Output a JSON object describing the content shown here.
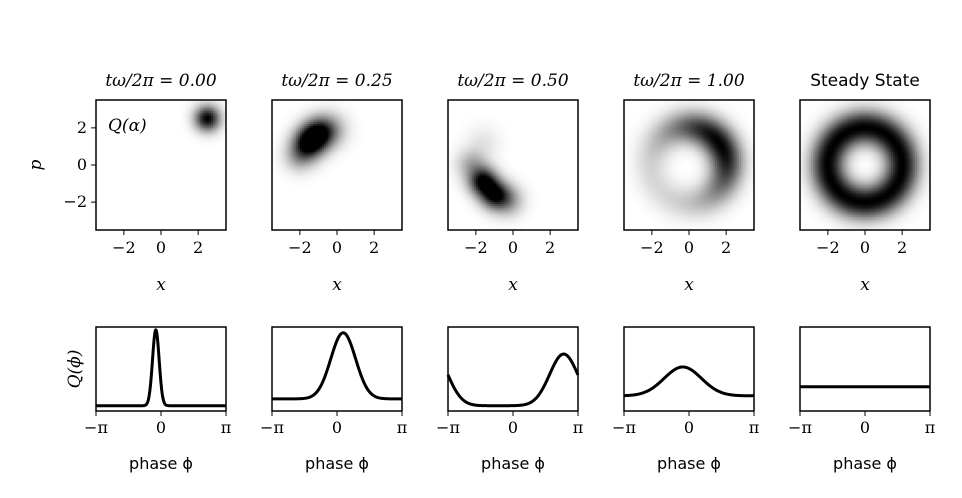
{
  "chart_data": [
    {
      "type": "heatmap",
      "title": "tω/2π = 0.00",
      "xlabel": "x",
      "ylabel": "p",
      "annotation": "Q(α)",
      "xlim": [
        -3.5,
        3.5
      ],
      "ylim": [
        -3.5,
        3.5
      ],
      "xticks": [
        "−2",
        "0",
        "2"
      ],
      "yticks": [
        "2",
        "0",
        "−2"
      ],
      "blobs": [
        {
          "cx": 2.5,
          "cy": 2.5,
          "sigma": 0.45,
          "amp": 1.0
        }
      ]
    },
    {
      "type": "heatmap",
      "title": "tω/2π = 0.25",
      "xlabel": "x",
      "xlim": [
        -3.5,
        3.5
      ],
      "ylim": [
        -3.5,
        3.5
      ],
      "xticks": [
        "−2",
        "0",
        "2"
      ],
      "blobs": [
        {
          "cx": -1.5,
          "cy": 1.2,
          "sigma": 0.55,
          "amp": 1.0
        },
        {
          "cx": -1.0,
          "cy": 1.7,
          "sigma": 0.55,
          "amp": 0.8
        },
        {
          "cx": -0.4,
          "cy": 1.9,
          "sigma": 0.6,
          "amp": 0.35
        },
        {
          "cx": -2.0,
          "cy": 0.5,
          "sigma": 0.55,
          "amp": 0.35
        }
      ]
    },
    {
      "type": "heatmap",
      "title": "tω/2π = 0.50",
      "xlabel": "x",
      "xlim": [
        -3.5,
        3.5
      ],
      "ylim": [
        -3.5,
        3.5
      ],
      "xticks": [
        "−2",
        "0",
        "2"
      ],
      "blobs": [
        {
          "cx": -1.6,
          "cy": -0.9,
          "sigma": 0.5,
          "amp": 1.0
        },
        {
          "cx": -1.0,
          "cy": -1.6,
          "sigma": 0.5,
          "amp": 0.9
        },
        {
          "cx": -0.3,
          "cy": -1.9,
          "sigma": 0.55,
          "amp": 0.4
        },
        {
          "cx": -2.2,
          "cy": 0.0,
          "sigma": 0.55,
          "amp": 0.3
        },
        {
          "cx": -1.6,
          "cy": 1.2,
          "sigma": 0.6,
          "amp": 0.08
        }
      ]
    },
    {
      "type": "heatmap",
      "title": "tω/2π = 1.00",
      "xlabel": "x",
      "xlim": [
        -3.5,
        3.5
      ],
      "ylim": [
        -3.5,
        3.5
      ],
      "xticks": [
        "−2",
        "0",
        "2"
      ],
      "ring": {
        "r": 2.0,
        "width": 0.6,
        "phi": 0.6,
        "spread": 1.0,
        "amp": 1.0,
        "bg": 0.12
      }
    },
    {
      "type": "heatmap",
      "title": "Steady State",
      "xlabel": "x",
      "xlim": [
        -3.5,
        3.5
      ],
      "ylim": [
        -3.5,
        3.5
      ],
      "xticks": [
        "−2",
        "0",
        "2"
      ],
      "ring": {
        "r": 2.0,
        "width": 0.62,
        "uniform": true,
        "amp": 1.0
      }
    },
    {
      "type": "line",
      "xlabel": "phase ϕ",
      "ylabel": "Q(ϕ)",
      "xlim": [
        -3.1416,
        3.1416
      ],
      "xticks": [
        "−π",
        "0",
        "π"
      ],
      "curve": {
        "base": 0.03,
        "amp": 1.0,
        "center": -0.25,
        "sigma": 0.16
      }
    },
    {
      "type": "line",
      "xlabel": "phase ϕ",
      "xlim": [
        -3.1416,
        3.1416
      ],
      "xticks": [
        "−π",
        "0",
        "π"
      ],
      "curve": {
        "base": 0.12,
        "amp": 0.87,
        "center": 0.3,
        "sigma": 0.6
      }
    },
    {
      "type": "line",
      "xlabel": "phase ϕ",
      "xlim": [
        -3.1416,
        3.1416
      ],
      "xticks": [
        "−π",
        "0",
        "π"
      ],
      "curve": {
        "base": 0.03,
        "amp": 0.68,
        "center": 2.45,
        "sigma": 0.68,
        "wrap": true
      }
    },
    {
      "type": "line",
      "xlabel": "phase ϕ",
      "xlim": [
        -3.1416,
        3.1416
      ],
      "xticks": [
        "−π",
        "0",
        "π"
      ],
      "curve": {
        "base": 0.16,
        "amp": 0.38,
        "center": -0.3,
        "sigma": 0.9,
        "wrap": true
      }
    },
    {
      "type": "line",
      "xlabel": "phase ϕ",
      "xlim": [
        -3.1416,
        3.1416
      ],
      "xticks": [
        "−π",
        "0",
        "π"
      ],
      "curve": {
        "base": 0.28,
        "amp": 0.0,
        "center": 0,
        "sigma": 1
      }
    }
  ]
}
